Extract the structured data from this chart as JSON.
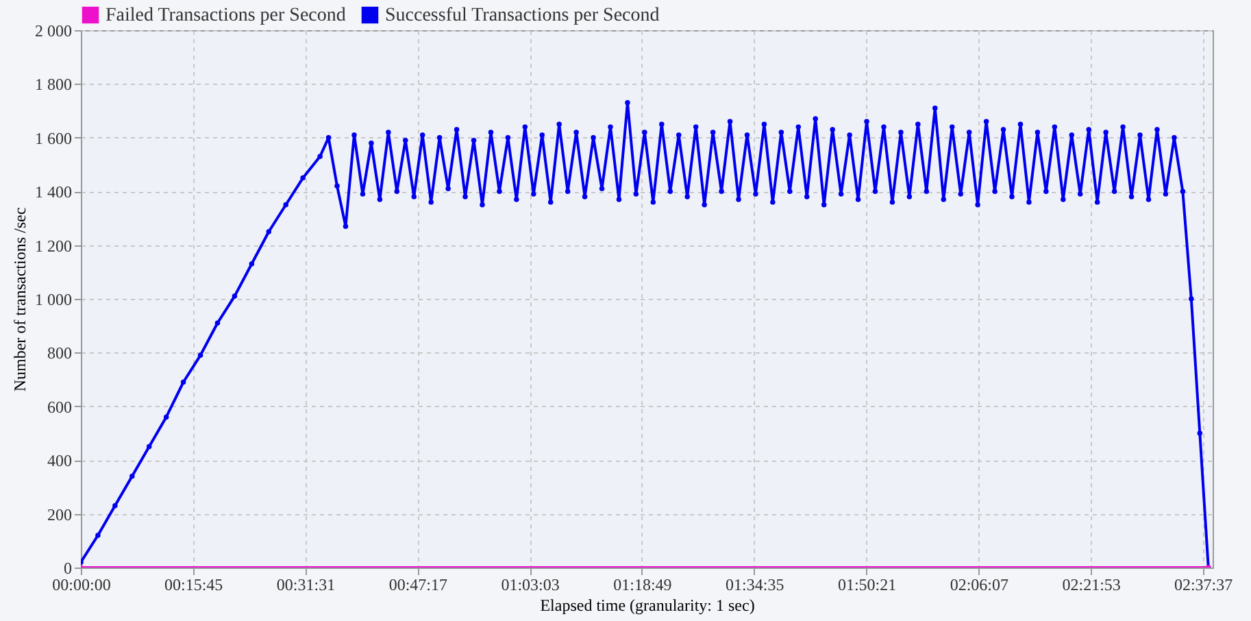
{
  "chart_data": {
    "type": "line",
    "xlabel": "Elapsed time (granularity: 1 sec)",
    "ylabel": "Number of transactions /sec",
    "xlim": [
      0,
      2.65
    ],
    "ylim": [
      0,
      2000
    ],
    "xticks": [
      {
        "value": 0,
        "label": "00:00:00"
      },
      {
        "value": 0.2625,
        "label": "00:15:45"
      },
      {
        "value": 0.5253,
        "label": "00:31:31"
      },
      {
        "value": 0.7881,
        "label": "00:47:17"
      },
      {
        "value": 1.0508,
        "label": "01:03:03"
      },
      {
        "value": 1.3136,
        "label": "01:18:49"
      },
      {
        "value": 1.5764,
        "label": "01:34:35"
      },
      {
        "value": 1.8392,
        "label": "01:50:21"
      },
      {
        "value": 2.1019,
        "label": "02:06:07"
      },
      {
        "value": 2.3647,
        "label": "02:21:53"
      },
      {
        "value": 2.6269,
        "label": "02:37:37"
      }
    ],
    "yticks": [
      0,
      200,
      400,
      600,
      800,
      {
        "value": 1000,
        "label": "1 000"
      },
      {
        "value": 1200,
        "label": "1 200"
      },
      {
        "value": 1400,
        "label": "1 400"
      },
      {
        "value": 1600,
        "label": "1 600"
      },
      {
        "value": 1800,
        "label": "1 800"
      },
      {
        "value": 2000,
        "label": "2 000"
      }
    ],
    "grid": true,
    "legend": "top left",
    "marker": "circle",
    "line_style": "solid",
    "series": [
      {
        "name": "Failed Transactions per Second",
        "color": "#ee11cc",
        "x": [
          0,
          2.64
        ],
        "values": [
          0,
          0
        ]
      },
      {
        "name": "Successful Transactions per Second",
        "color": "#0000ee",
        "x": [
          0,
          0.04,
          0.08,
          0.12,
          0.16,
          0.2,
          0.24,
          0.28,
          0.32,
          0.36,
          0.4,
          0.44,
          0.48,
          0.52,
          0.56,
          0.58,
          0.6,
          0.62,
          0.64,
          0.66,
          0.68,
          0.7,
          0.72,
          0.74,
          0.76,
          0.78,
          0.8,
          0.82,
          0.84,
          0.86,
          0.88,
          0.9,
          0.92,
          0.94,
          0.96,
          0.98,
          1,
          1.02,
          1.04,
          1.06,
          1.08,
          1.1,
          1.12,
          1.14,
          1.16,
          1.18,
          1.2,
          1.22,
          1.24,
          1.26,
          1.28,
          1.3,
          1.32,
          1.34,
          1.36,
          1.38,
          1.4,
          1.42,
          1.44,
          1.46,
          1.48,
          1.5,
          1.52,
          1.54,
          1.56,
          1.58,
          1.6,
          1.62,
          1.64,
          1.66,
          1.68,
          1.7,
          1.72,
          1.74,
          1.76,
          1.78,
          1.8,
          1.82,
          1.84,
          1.86,
          1.88,
          1.9,
          1.92,
          1.94,
          1.96,
          1.98,
          2,
          2.02,
          2.04,
          2.06,
          2.08,
          2.1,
          2.12,
          2.14,
          2.16,
          2.18,
          2.2,
          2.22,
          2.24,
          2.26,
          2.28,
          2.3,
          2.32,
          2.34,
          2.36,
          2.38,
          2.4,
          2.42,
          2.44,
          2.46,
          2.48,
          2.5,
          2.52,
          2.54,
          2.56,
          2.58,
          2.6,
          2.62,
          2.64
        ],
        "values": [
          20,
          120,
          230,
          340,
          450,
          560,
          690,
          790,
          910,
          1010,
          1130,
          1250,
          1350,
          1450,
          1530,
          1600,
          1420,
          1270,
          1610,
          1390,
          1580,
          1370,
          1620,
          1400,
          1590,
          1380,
          1610,
          1360,
          1600,
          1410,
          1630,
          1380,
          1590,
          1350,
          1620,
          1400,
          1600,
          1370,
          1640,
          1390,
          1610,
          1360,
          1650,
          1400,
          1620,
          1380,
          1600,
          1410,
          1640,
          1370,
          1730,
          1390,
          1620,
          1360,
          1650,
          1400,
          1610,
          1380,
          1640,
          1350,
          1620,
          1400,
          1660,
          1370,
          1610,
          1390,
          1650,
          1360,
          1620,
          1400,
          1640,
          1380,
          1670,
          1350,
          1630,
          1390,
          1610,
          1370,
          1660,
          1400,
          1640,
          1360,
          1620,
          1380,
          1650,
          1400,
          1710,
          1370,
          1640,
          1390,
          1620,
          1350,
          1660,
          1400,
          1630,
          1380,
          1650,
          1360,
          1620,
          1400,
          1640,
          1370,
          1610,
          1390,
          1630,
          1360,
          1620,
          1400,
          1640,
          1380,
          1610,
          1370,
          1630,
          1390,
          1600,
          1400,
          1000,
          500,
          0
        ]
      }
    ]
  }
}
